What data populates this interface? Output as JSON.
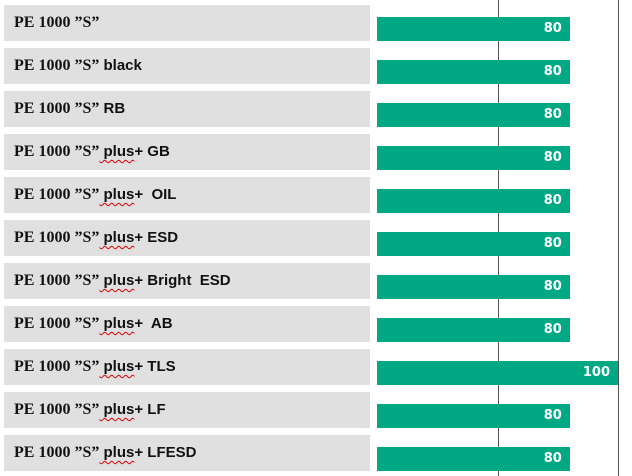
{
  "chart_data": {
    "type": "bar",
    "orientation": "horizontal",
    "xlim": [
      0,
      100
    ],
    "gridlines": [
      50,
      100
    ],
    "bar_color": "#00a884",
    "categories": [
      {
        "prefix": "PE 1000 ”S”",
        "plus": "",
        "rest": ""
      },
      {
        "prefix": "PE 1000 ”S”",
        "plus": "",
        "rest": " black"
      },
      {
        "prefix": "PE 1000 ”S”",
        "plus": "",
        "rest": " RB"
      },
      {
        "prefix": "PE 1000 ”S”",
        "plus": " plus",
        "rest": "+ GB"
      },
      {
        "prefix": "PE 1000 ”S”",
        "plus": " plus",
        "rest": "+  OIL"
      },
      {
        "prefix": "PE 1000 ”S”",
        "plus": " plus",
        "rest": "+ ESD"
      },
      {
        "prefix": "PE 1000 ”S”",
        "plus": " plus",
        "rest": "+ Bright  ESD"
      },
      {
        "prefix": "PE 1000 ”S”",
        "plus": " plus",
        "rest": "+  AB"
      },
      {
        "prefix": "PE 1000 ”S”",
        "plus": " plus",
        "rest": "+ TLS"
      },
      {
        "prefix": "PE 1000 ”S”",
        "plus": " plus",
        "rest": "+ LF"
      },
      {
        "prefix": "PE 1000 ”S”",
        "plus": " plus",
        "rest": "+ LFESD"
      }
    ],
    "values": [
      80,
      80,
      80,
      80,
      80,
      80,
      80,
      80,
      100,
      80,
      80
    ],
    "value_labels": [
      "80",
      "80",
      "80",
      "80",
      "80",
      "80",
      "80",
      "80",
      "100",
      "80",
      "80"
    ]
  }
}
